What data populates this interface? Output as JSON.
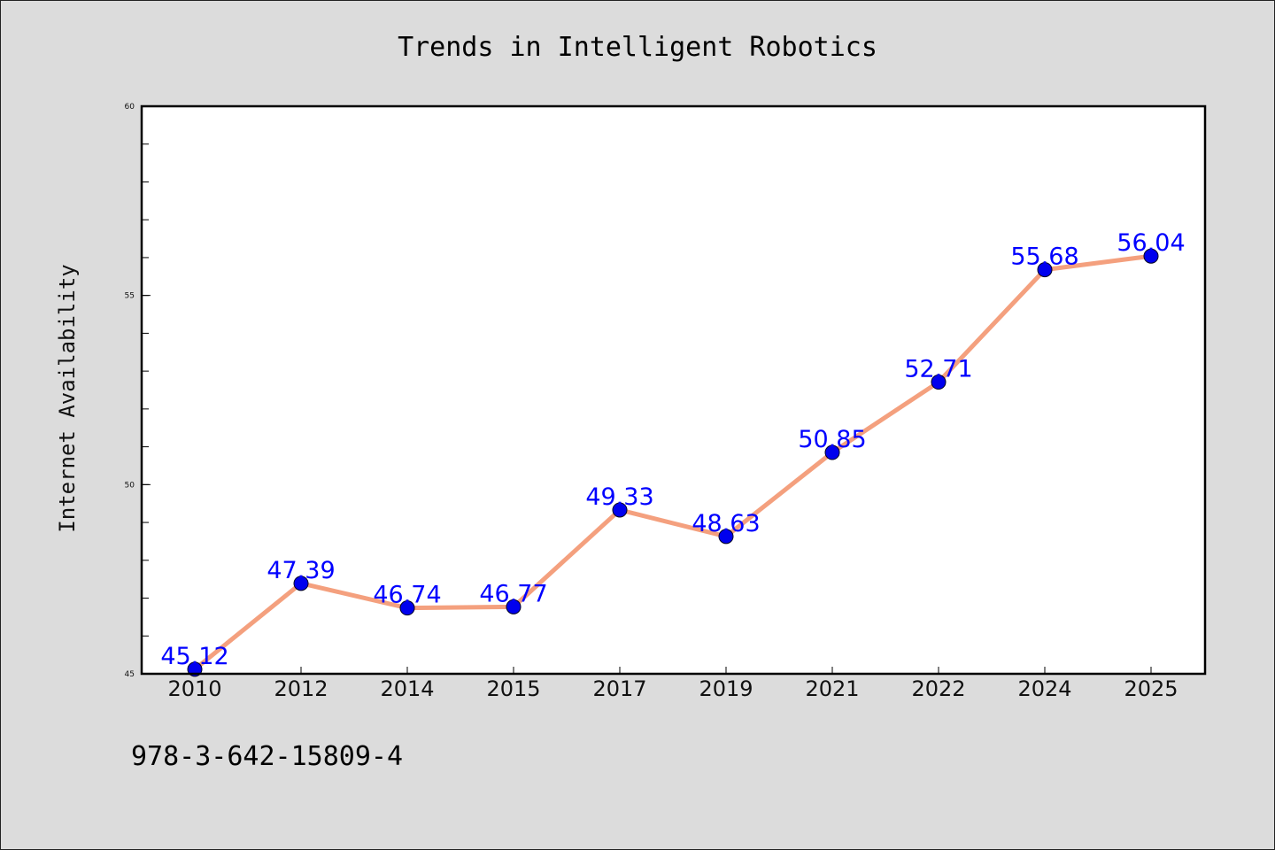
{
  "chart_data": {
    "type": "line",
    "title": "Trends in Intelligent Robotics",
    "xlabel": "",
    "ylabel": "Internet Availability",
    "categories": [
      "2010",
      "2012",
      "2014",
      "2015",
      "2017",
      "2019",
      "2021",
      "2022",
      "2024",
      "2025"
    ],
    "series": [
      {
        "values": [
          45.12,
          47.39,
          46.74,
          46.77,
          49.33,
          48.63,
          50.85,
          52.71,
          55.68,
          56.04
        ],
        "data_labels": [
          "45.12",
          "47.39",
          "46.74",
          "46.77",
          "49.33",
          "48.63",
          "50.85",
          "52.71",
          "55.68",
          "56.04"
        ],
        "line_color": "#f4a07e",
        "marker_color": "#0000ee"
      }
    ],
    "ylim": [
      45,
      60
    ],
    "yticks": [
      45,
      50,
      55,
      60
    ],
    "ytick_labels": [
      "45",
      "50",
      "55",
      "60"
    ],
    "grid": false,
    "legend": "none",
    "label_color": "#0000ff"
  },
  "footnote": "978-3-642-15809-4"
}
